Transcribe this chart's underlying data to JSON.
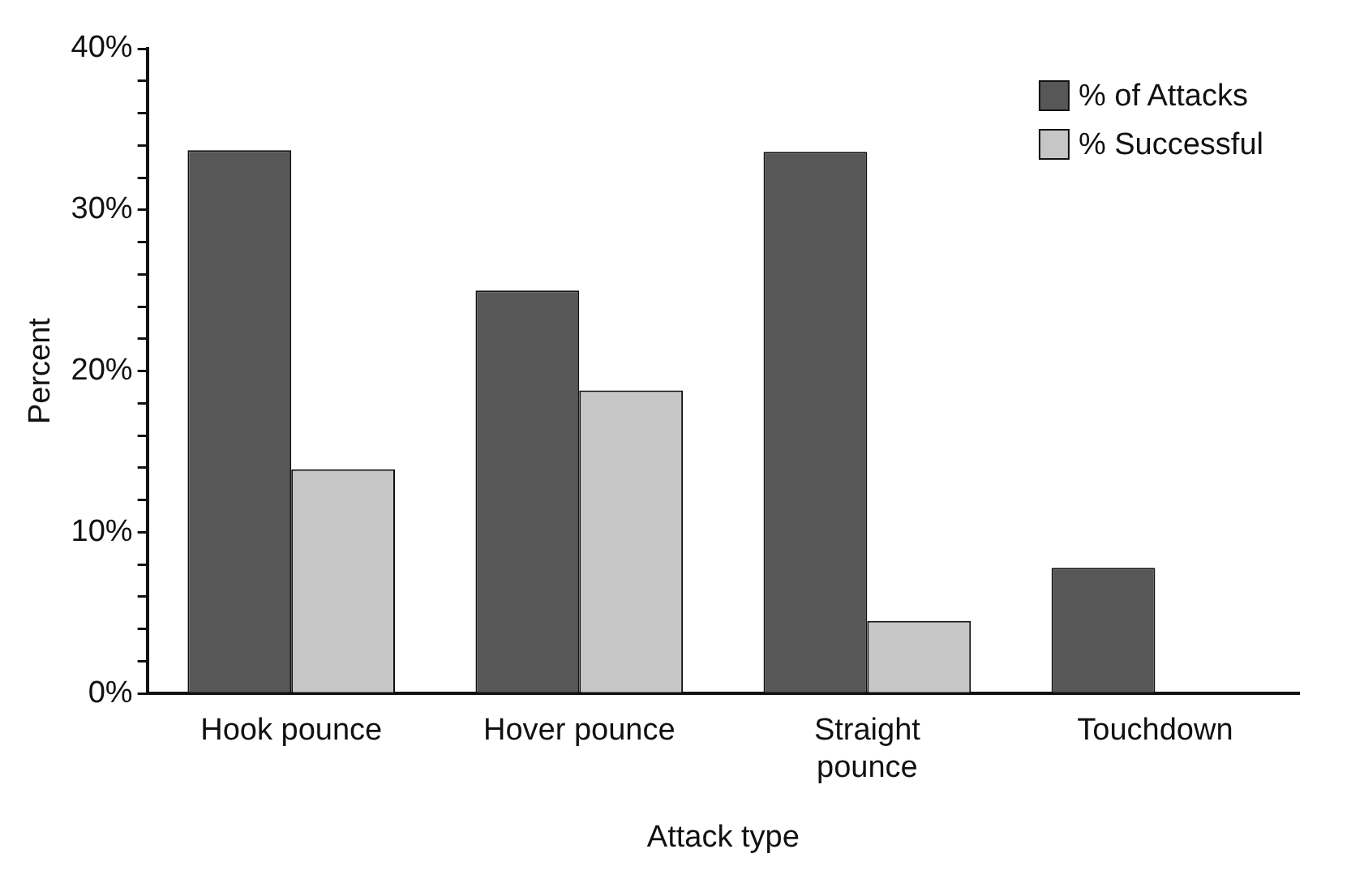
{
  "chart_data": {
    "type": "bar",
    "xlabel": "Attack type",
    "ylabel": "Percent",
    "categories": [
      "Hook pounce",
      "Hover pounce",
      "Straight pounce",
      "Touchdown"
    ],
    "series": [
      {
        "name": "% of Attacks",
        "color": "#575757",
        "values": [
          33.7,
          25.0,
          33.6,
          7.8
        ]
      },
      {
        "name": "% Successful",
        "color": "#c6c6c6",
        "values": [
          13.9,
          18.8,
          4.5,
          0
        ]
      }
    ],
    "ylim": [
      0,
      40
    ],
    "yticks": [
      {
        "value": 0,
        "label": "0%"
      },
      {
        "value": 2,
        "label": null
      },
      {
        "value": 4,
        "label": null
      },
      {
        "value": 6,
        "label": null
      },
      {
        "value": 8,
        "label": null
      },
      {
        "value": 10,
        "label": "10%"
      },
      {
        "value": 12,
        "label": null
      },
      {
        "value": 14,
        "label": null
      },
      {
        "value": 16,
        "label": null
      },
      {
        "value": 18,
        "label": null
      },
      {
        "value": 20,
        "label": "20%"
      },
      {
        "value": 22,
        "label": null
      },
      {
        "value": 24,
        "label": null
      },
      {
        "value": 26,
        "label": null
      },
      {
        "value": 28,
        "label": null
      },
      {
        "value": 30,
        "label": "30%"
      },
      {
        "value": 32,
        "label": null
      },
      {
        "value": 34,
        "label": null
      },
      {
        "value": 36,
        "label": null
      },
      {
        "value": 38,
        "label": null
      },
      {
        "value": 40,
        "label": "40%"
      }
    ],
    "grid": false,
    "legend": "top right"
  }
}
